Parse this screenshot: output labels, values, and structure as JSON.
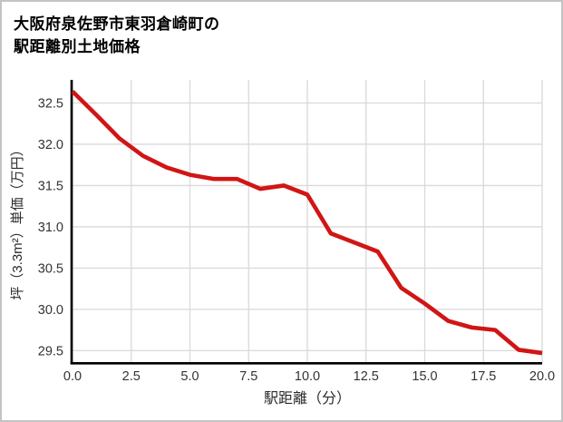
{
  "title": {
    "line1": "大阪府泉佐野市東羽倉崎町の",
    "line2": "駅距離別土地価格"
  },
  "chart_data": {
    "type": "line",
    "title": "大阪府泉佐野市東羽倉崎町の駅距離別土地価格",
    "xlabel": "駅距離（分）",
    "ylabel": "坪（3.3m²）単価（万円）",
    "series": [
      {
        "name": "駅距離別土地価格",
        "x": [
          0,
          1,
          2,
          3,
          4,
          5,
          6,
          7,
          8,
          9,
          10,
          11,
          12,
          13,
          14,
          15,
          16,
          17,
          18,
          19,
          20
        ],
        "values": [
          32.64,
          32.36,
          32.07,
          31.86,
          31.72,
          31.63,
          31.58,
          31.58,
          31.46,
          31.5,
          31.39,
          30.92,
          30.81,
          30.7,
          30.26,
          30.07,
          29.86,
          29.78,
          29.75,
          29.51,
          29.47
        ]
      }
    ],
    "xlim": [
      0,
      20
    ],
    "ylim": [
      29.35,
      32.78
    ],
    "x_ticks": [
      0.0,
      2.5,
      5.0,
      7.5,
      10.0,
      12.5,
      15.0,
      17.5,
      20.0
    ],
    "x_tick_labels": [
      "0.0",
      "2.5",
      "5.0",
      "7.5",
      "10.0",
      "12.5",
      "15.0",
      "17.5",
      "20.0"
    ],
    "y_ticks": [
      29.5,
      30.0,
      30.5,
      31.0,
      31.5,
      32.0,
      32.5
    ],
    "y_tick_labels": [
      "29.5",
      "30.0",
      "30.5",
      "31.0",
      "31.5",
      "32.0",
      "32.5"
    ],
    "grid": true,
    "legend": "none",
    "line_color": "#d11515",
    "grid_color": "#d9d9d9",
    "spine_color": "#000000",
    "tick_label_color": "#333333"
  }
}
